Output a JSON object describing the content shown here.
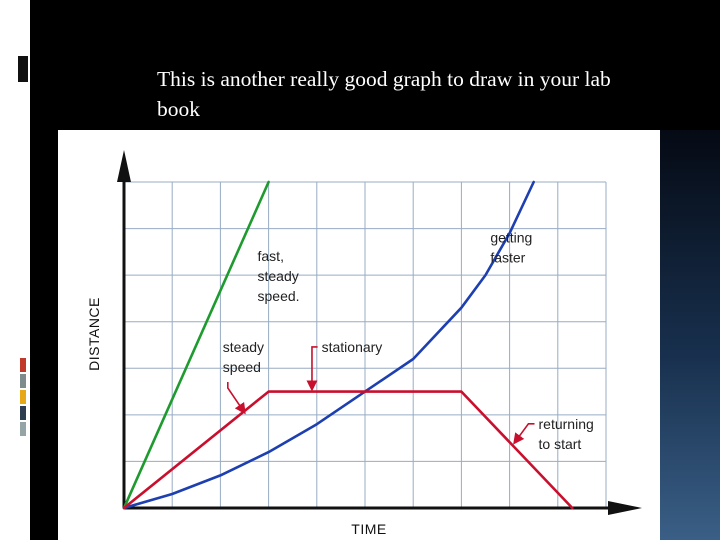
{
  "slide": {
    "title": "This is another really good graph to draw in your lab book",
    "accent_colors": [
      "#c0392b",
      "#7f8c8d",
      "#e6a817",
      "#2c3e50",
      "#95a5a6"
    ]
  },
  "chart_data": {
    "type": "line",
    "xlabel": "TIME",
    "ylabel": "DISTANCE",
    "xlim": [
      0,
      10
    ],
    "ylim": [
      0,
      7
    ],
    "grid": true,
    "series": [
      {
        "color": "#1e9b2e",
        "points": [
          [
            0,
            0
          ],
          [
            3,
            7
          ]
        ]
      },
      {
        "color": "#1d3fb0",
        "points": [
          [
            0,
            0
          ],
          [
            1,
            0.3
          ],
          [
            2,
            0.7
          ],
          [
            3,
            1.2
          ],
          [
            4,
            1.8
          ],
          [
            5,
            2.5
          ],
          [
            6,
            3.2
          ],
          [
            7,
            4.3
          ],
          [
            7.5,
            5.0
          ],
          [
            8,
            5.9
          ],
          [
            8.5,
            7.0
          ]
        ]
      },
      {
        "color": "#c8102e",
        "points": [
          [
            0,
            0
          ],
          [
            3,
            2.5
          ],
          [
            7,
            2.5
          ],
          [
            9.3,
            0
          ]
        ]
      }
    ],
    "annotations": [
      {
        "lines": [
          "fast,",
          "steady",
          "speed."
        ],
        "anchor": [
          2.77,
          5.3
        ]
      },
      {
        "lines": [
          "getting",
          "faster"
        ],
        "anchor": [
          7.6,
          5.7
        ]
      },
      {
        "lines": [
          "steady",
          "speed"
        ],
        "anchor": [
          2.05,
          3.35
        ],
        "arrow_to": [
          2.5,
          2.05
        ]
      },
      {
        "lines": [
          "stationary"
        ],
        "anchor": [
          4.1,
          3.35
        ],
        "arrow_to": [
          3.9,
          2.55
        ]
      },
      {
        "lines": [
          "returning",
          "to start"
        ],
        "anchor": [
          8.6,
          1.7
        ],
        "arrow_to": [
          8.1,
          1.4
        ]
      }
    ]
  }
}
